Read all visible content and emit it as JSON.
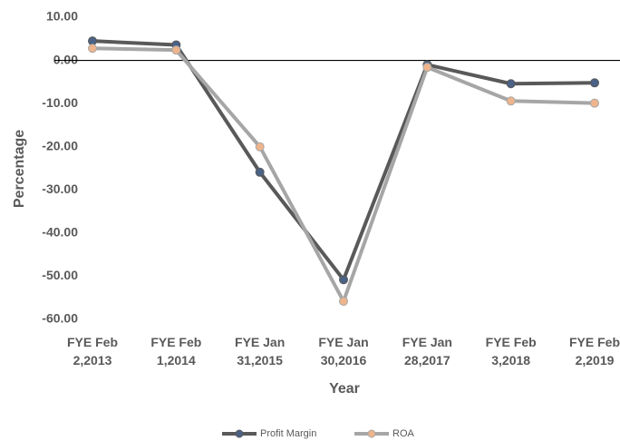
{
  "chart_data": {
    "type": "line",
    "x_label": "Year",
    "y_label": "Percentage",
    "categories": [
      "FYE Feb 2,2013",
      "FYE Feb 1,2014",
      "FYE Jan 31,2015",
      "FYE Jan 30,2016",
      "FYE Jan 28,2017",
      "FYE Feb 3,2018",
      "FYE Feb 2,2019"
    ],
    "series": [
      {
        "name": "Profit Margin",
        "color": "#595959",
        "marker_color": "#4a6285",
        "values": [
          4.5,
          3.6,
          -25.9,
          -50.8,
          -1.0,
          -5.4,
          -5.2
        ]
      },
      {
        "name": "ROA",
        "color": "#a6a6a6",
        "marker_color": "#eeb48c",
        "values": [
          2.8,
          2.4,
          -20.0,
          -55.8,
          -1.6,
          -9.4,
          -9.9
        ]
      }
    ],
    "ylim": [
      -60,
      10
    ],
    "yticks": [
      {
        "value": -60,
        "label": "-60.00"
      },
      {
        "value": -50,
        "label": "-50.00"
      },
      {
        "value": -40,
        "label": "-40.00"
      },
      {
        "value": -30,
        "label": "-30.00"
      },
      {
        "value": -20,
        "label": "-20.00"
      },
      {
        "value": -10,
        "label": "-10.00"
      },
      {
        "value": 0,
        "label": "0.00"
      },
      {
        "value": 10,
        "label": "10.00"
      }
    ],
    "legend": "bottom"
  }
}
